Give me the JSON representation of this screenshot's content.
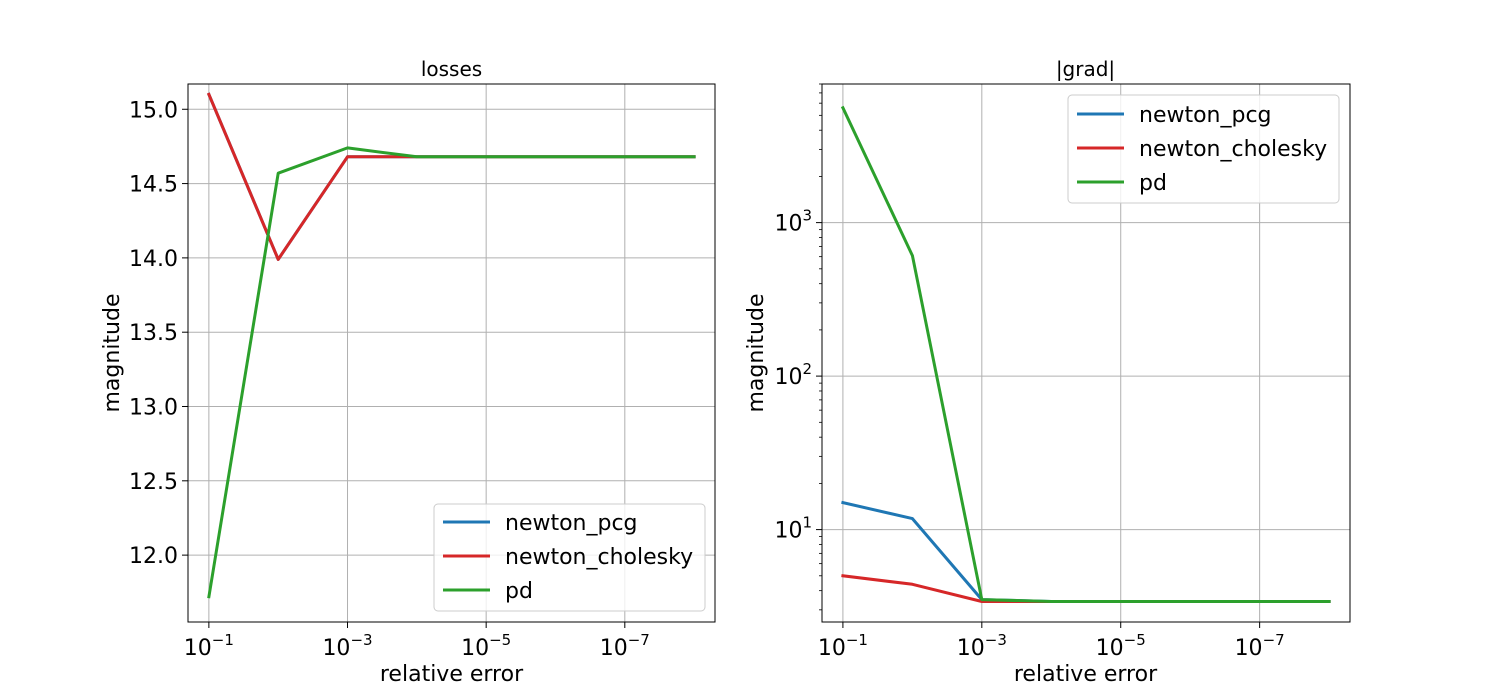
{
  "colors": {
    "newton_pcg": "#1f77b4",
    "newton_cholesky": "#d62728",
    "pd": "#2ca02c",
    "grid": "#b0b0b0",
    "axes": "#000000"
  },
  "chart_data": [
    {
      "type": "line",
      "title": "losses",
      "xlabel": "relative error",
      "ylabel": "magnitude",
      "xscale": "log",
      "xaxis": "inverted",
      "yscale": "linear",
      "xlim": [
        0.2,
        5e-09
      ],
      "ylim": [
        11.55,
        15.17
      ],
      "grid": true,
      "legend": "lower-right",
      "x": [
        0.1,
        0.01,
        0.001,
        0.0001,
        1e-05,
        1e-06,
        1e-07,
        1e-08
      ],
      "xticks": [
        {
          "value": 0.1,
          "base": "10",
          "exp": "−1"
        },
        {
          "value": 0.001,
          "base": "10",
          "exp": "−3"
        },
        {
          "value": 1e-05,
          "base": "10",
          "exp": "−5"
        },
        {
          "value": 1e-07,
          "base": "10",
          "exp": "−7"
        }
      ],
      "yticks": [
        {
          "value": 12.0,
          "label": "12.0"
        },
        {
          "value": 12.5,
          "label": "12.5"
        },
        {
          "value": 13.0,
          "label": "13.0"
        },
        {
          "value": 13.5,
          "label": "13.5"
        },
        {
          "value": 14.0,
          "label": "14.0"
        },
        {
          "value": 14.5,
          "label": "14.5"
        },
        {
          "value": 15.0,
          "label": "15.0"
        }
      ],
      "series": [
        {
          "name": "newton_pcg",
          "color": "#1f77b4",
          "values": [
            15.1,
            13.99,
            14.68,
            14.68,
            14.68,
            14.68,
            14.68,
            14.68
          ]
        },
        {
          "name": "newton_cholesky",
          "color": "#d62728",
          "values": [
            15.1,
            13.99,
            14.68,
            14.68,
            14.68,
            14.68,
            14.68,
            14.68
          ]
        },
        {
          "name": "pd",
          "color": "#2ca02c",
          "values": [
            11.72,
            14.57,
            14.74,
            14.68,
            14.68,
            14.68,
            14.68,
            14.68
          ]
        }
      ]
    },
    {
      "type": "line",
      "title": "|grad|",
      "xlabel": "relative error",
      "ylabel": "magnitude",
      "xscale": "log",
      "xaxis": "inverted",
      "yscale": "log",
      "xlim": [
        0.2,
        5e-09
      ],
      "ylim": [
        2.5,
        8000
      ],
      "grid": true,
      "legend": "upper-right",
      "x": [
        0.1,
        0.01,
        0.001,
        0.0001,
        1e-05,
        1e-06,
        1e-07,
        1e-08
      ],
      "xticks": [
        {
          "value": 0.1,
          "base": "10",
          "exp": "−1"
        },
        {
          "value": 0.001,
          "base": "10",
          "exp": "−3"
        },
        {
          "value": 1e-05,
          "base": "10",
          "exp": "−5"
        },
        {
          "value": 1e-07,
          "base": "10",
          "exp": "−7"
        }
      ],
      "yticks": [
        {
          "value": 10,
          "base": "10",
          "exp": "1"
        },
        {
          "value": 100,
          "base": "10",
          "exp": "2"
        },
        {
          "value": 1000,
          "base": "10",
          "exp": "3"
        }
      ],
      "series": [
        {
          "name": "newton_pcg",
          "color": "#1f77b4",
          "values": [
            15.0,
            11.8,
            3.5,
            3.4,
            3.4,
            3.4,
            3.4,
            3.4
          ]
        },
        {
          "name": "newton_cholesky",
          "color": "#d62728",
          "values": [
            5.0,
            4.4,
            3.4,
            3.4,
            3.4,
            3.4,
            3.4,
            3.4
          ]
        },
        {
          "name": "pd",
          "color": "#2ca02c",
          "values": [
            5600,
            610,
            3.5,
            3.4,
            3.4,
            3.4,
            3.4,
            3.4
          ]
        }
      ]
    }
  ]
}
